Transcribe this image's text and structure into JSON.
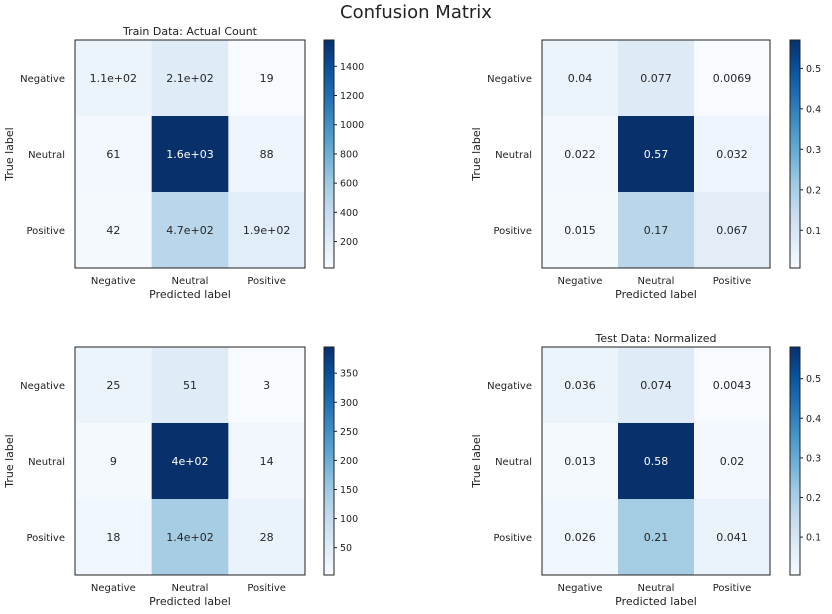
{
  "figure": {
    "title": "Confusion Matrix"
  },
  "chart_data": [
    {
      "type": "heatmap",
      "title": "Train Data: Actual Count",
      "xlabel": "Predicted label",
      "ylabel": "True label",
      "row_labels": [
        "Negative",
        "Neutral",
        "Positive"
      ],
      "col_labels": [
        "Negative",
        "Neutral",
        "Positive"
      ],
      "values": [
        [
          110,
          210,
          19
        ],
        [
          61,
          1600,
          88
        ],
        [
          42,
          470,
          190
        ]
      ],
      "cell_labels": [
        [
          "1.1e+02",
          "2.1e+02",
          "19"
        ],
        [
          "61",
          "1.6e+03",
          "88"
        ],
        [
          "42",
          "4.7e+02",
          "1.9e+02"
        ]
      ],
      "colorbar": {
        "range": [
          19,
          1580
        ],
        "ticks": [
          200,
          400,
          600,
          800,
          1000,
          1200,
          1400
        ],
        "colormap": "Blues"
      }
    },
    {
      "type": "heatmap",
      "title": "",
      "xlabel": "Predicted label",
      "ylabel": "True label",
      "row_labels": [
        "Negative",
        "Neutral",
        "Positive"
      ],
      "col_labels": [
        "Negative",
        "Neutral",
        "Positive"
      ],
      "values": [
        [
          0.04,
          0.077,
          0.0069
        ],
        [
          0.022,
          0.57,
          0.032
        ],
        [
          0.015,
          0.17,
          0.067
        ]
      ],
      "cell_labels": [
        [
          "0.04",
          "0.077",
          "0.0069"
        ],
        [
          "0.022",
          "0.57",
          "0.032"
        ],
        [
          "0.015",
          "0.17",
          "0.067"
        ]
      ],
      "colorbar": {
        "range": [
          0.0069,
          0.57
        ],
        "ticks": [
          0.1,
          0.2,
          0.3,
          0.4,
          0.5
        ],
        "colormap": "Blues"
      }
    },
    {
      "type": "heatmap",
      "title": "",
      "xlabel": "Predicted label",
      "ylabel": "True label",
      "row_labels": [
        "Negative",
        "Neutral",
        "Positive"
      ],
      "col_labels": [
        "Negative",
        "Neutral",
        "Positive"
      ],
      "values": [
        [
          25,
          51,
          3
        ],
        [
          9,
          400,
          14
        ],
        [
          18,
          140,
          28
        ]
      ],
      "cell_labels": [
        [
          "25",
          "51",
          "3"
        ],
        [
          "9",
          "4e+02",
          "14"
        ],
        [
          "18",
          "1.4e+02",
          "28"
        ]
      ],
      "colorbar": {
        "range": [
          3,
          395
        ],
        "ticks": [
          50,
          100,
          150,
          200,
          250,
          300,
          350
        ],
        "colormap": "Blues"
      }
    },
    {
      "type": "heatmap",
      "title": "Test Data: Normalized",
      "xlabel": "Predicted label",
      "ylabel": "True label",
      "row_labels": [
        "Negative",
        "Neutral",
        "Positive"
      ],
      "col_labels": [
        "Negative",
        "Neutral",
        "Positive"
      ],
      "values": [
        [
          0.036,
          0.074,
          0.0043
        ],
        [
          0.013,
          0.58,
          0.02
        ],
        [
          0.026,
          0.21,
          0.041
        ]
      ],
      "cell_labels": [
        [
          "0.036",
          "0.074",
          "0.0043"
        ],
        [
          "0.013",
          "0.58",
          "0.02"
        ],
        [
          "0.026",
          "0.21",
          "0.041"
        ]
      ],
      "colorbar": {
        "range": [
          0.0043,
          0.58
        ],
        "ticks": [
          0.1,
          0.2,
          0.3,
          0.4,
          0.5
        ],
        "colormap": "Blues"
      }
    }
  ]
}
